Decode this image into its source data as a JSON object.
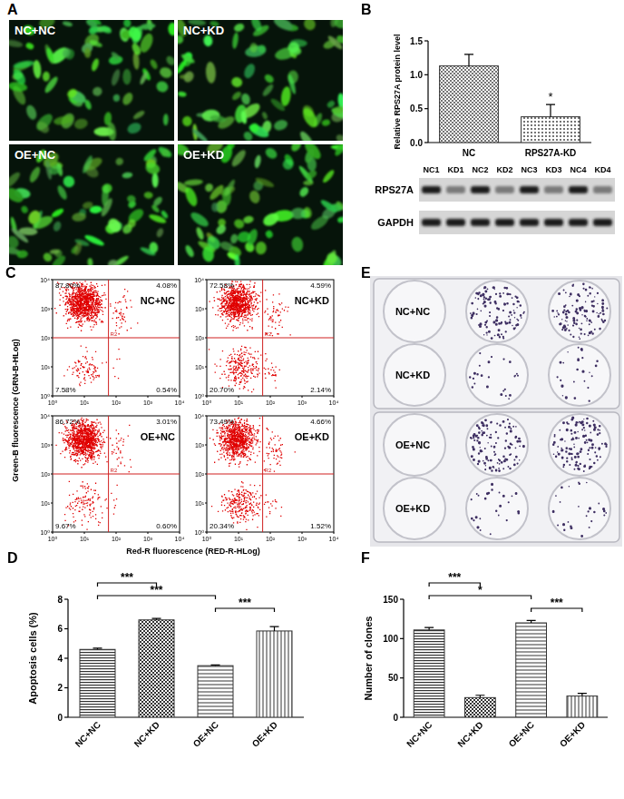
{
  "panel_a": {
    "label": "A",
    "images": [
      "NC+NC",
      "NC+KD",
      "OE+NC",
      "OE+KD"
    ]
  },
  "panel_b_blot": {
    "lanes": [
      "NC1",
      "KD1",
      "NC2",
      "KD2",
      "NC3",
      "KD3",
      "NC4",
      "KD4"
    ],
    "rows": [
      "RPS27A",
      "GAPDH"
    ]
  },
  "panel_c": {
    "label": "C",
    "y_label": "Green-B fluorescence (GRN-B-HLog)",
    "x_label": "Red-R fluorescence (RED-R-HLog)",
    "axis_ticks": [
      "10⁰",
      "10¹",
      "10²",
      "10³",
      "10⁴"
    ],
    "gate": "R2",
    "plots": [
      {
        "label": "NC+NC",
        "upper_left": "87.80%",
        "upper_right": "4.08%",
        "lower_left": "7.58%",
        "lower_right": "0.54%"
      },
      {
        "label": "NC+KD",
        "upper_left": "72.58%",
        "upper_right": "4.59%",
        "lower_left": "20.70%",
        "lower_right": "2.14%"
      },
      {
        "label": "OE+NC",
        "upper_left": "86.72%",
        "upper_right": "3.01%",
        "lower_left": "9.67%",
        "lower_right": "0.60%"
      },
      {
        "label": "OE+KD",
        "upper_left": "73.49%",
        "upper_right": "4.66%",
        "lower_left": "20.34%",
        "lower_right": "1.52%"
      }
    ]
  },
  "panel_e": {
    "label": "E",
    "plates": [
      [
        "NC+NC",
        "NC+KD"
      ],
      [
        "OE+NC",
        "OE+KD"
      ]
    ]
  },
  "chart_data": [
    {
      "panel": "B",
      "type": "bar",
      "y_label": "Relative RPS27A protein level",
      "categories": [
        "NC",
        "RPS27A-KD"
      ],
      "values": [
        1.13,
        0.38
      ],
      "errors": [
        0.17,
        0.18
      ],
      "colors": [
        "#333333",
        "#333333"
      ],
      "ylim": [
        0,
        1.5
      ],
      "yticks": [
        {
          "value": 0,
          "label": "0.0"
        },
        {
          "value": 0.5,
          "label": "0.5"
        },
        {
          "value": 1,
          "label": "1.0"
        },
        {
          "value": 1.5,
          "label": "1.5"
        }
      ],
      "annotations": [
        {
          "category": 1,
          "text": "*"
        }
      ]
    },
    {
      "panel": "D",
      "type": "bar",
      "y_label": "Apoptosis cells (%)",
      "categories": [
        "NC+NC",
        "NC+KD",
        "OE+NC",
        "OE+KD"
      ],
      "values": [
        4.6,
        6.6,
        3.5,
        5.85
      ],
      "errors": [
        0.08,
        0.1,
        0.05,
        0.3
      ],
      "colors": [
        "#333333",
        "#333333",
        "#333333",
        "#333333"
      ],
      "ylim": [
        0,
        8
      ],
      "yticks": [
        0,
        2,
        4,
        6,
        8
      ],
      "annotations": [
        {
          "from": 0,
          "to": 1,
          "text": "***"
        },
        {
          "from": 0,
          "to": 2,
          "text": "***"
        },
        {
          "from": 2,
          "to": 3,
          "text": "***"
        }
      ]
    },
    {
      "panel": "F",
      "type": "bar",
      "y_label": "Number of clones",
      "categories": [
        "NC+NC",
        "NC+KD",
        "OE+NC",
        "OE+KD"
      ],
      "values": [
        111,
        25,
        120,
        27
      ],
      "errors": [
        3,
        3,
        3,
        3.5
      ],
      "colors": [
        "#333333",
        "#333333",
        "#333333",
        "#333333"
      ],
      "ylim": [
        0,
        150
      ],
      "yticks": [
        0,
        50,
        100,
        150
      ],
      "annotations": [
        {
          "from": 0,
          "to": 1,
          "text": "***"
        },
        {
          "from": 0,
          "to": 2,
          "text": "*"
        },
        {
          "from": 2,
          "to": 3,
          "text": "***"
        }
      ]
    }
  ]
}
